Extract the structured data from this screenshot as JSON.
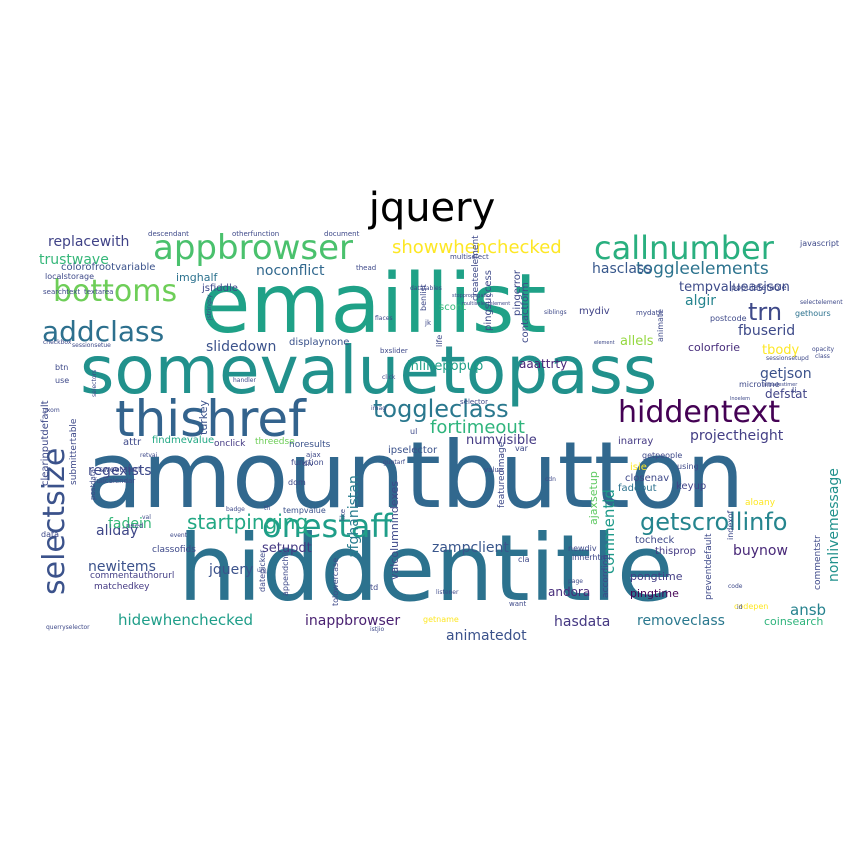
{
  "title": "jquery",
  "words": [
    {
      "text": "amountbutton",
      "color": "#31688e"
    },
    {
      "text": "hiddentitle",
      "color": "#2c728e"
    },
    {
      "text": "emaillist",
      "color": "#1fa187"
    },
    {
      "text": "somevaluetopass",
      "color": "#21918c"
    },
    {
      "text": "thishref",
      "color": "#33638d"
    },
    {
      "text": "appbrowser",
      "color": "#4ac16d"
    },
    {
      "text": "callnumber",
      "color": "#29af7f"
    },
    {
      "text": "bottoms",
      "color": "#6ece58"
    },
    {
      "text": "addclass",
      "color": "#2d708e"
    },
    {
      "text": "selectsize",
      "color": "#3b528b"
    },
    {
      "text": "hiddentext",
      "color": "#440154"
    },
    {
      "text": "onestaff",
      "color": "#1f9e89"
    },
    {
      "text": "toggleclass",
      "color": "#2a788e"
    },
    {
      "text": "getscrollinfo",
      "color": "#25858e"
    },
    {
      "text": "showwhenchecked",
      "color": "#fde725"
    },
    {
      "text": "toggleelements",
      "color": "#2c738e"
    },
    {
      "text": "startpinging",
      "color": "#22a884"
    },
    {
      "text": "trn",
      "color": "#3e4989"
    },
    {
      "text": "fortimeout",
      "color": "#2fb47c"
    },
    {
      "text": "replacewith",
      "color": "#404387"
    },
    {
      "text": "trustwave",
      "color": "#35b779"
    },
    {
      "text": "noconflict",
      "color": "#31688e"
    },
    {
      "text": "hasclass",
      "color": "#38588c"
    },
    {
      "text": "tempvalueasjson",
      "color": "#3e4c8a"
    },
    {
      "text": "fbuserid",
      "color": "#3e4a89"
    },
    {
      "text": "projectheight",
      "color": "#433e85"
    },
    {
      "text": "nonlivemessage",
      "color": "#21918c"
    },
    {
      "text": "slidedown",
      "color": "#3b528b"
    },
    {
      "text": "inlinepopup",
      "color": "#1fa088"
    },
    {
      "text": "aaattrty",
      "color": "#482677"
    },
    {
      "text": "allels",
      "color": "#95d840"
    },
    {
      "text": "colorforie",
      "color": "#472d7b"
    },
    {
      "text": "tbody",
      "color": "#fde725"
    },
    {
      "text": "getjson",
      "color": "#3b528b"
    },
    {
      "text": "defstat",
      "color": "#414487"
    },
    {
      "text": "algir",
      "color": "#25848e"
    },
    {
      "text": "regexists",
      "color": "#3e4989"
    },
    {
      "text": "newitems",
      "color": "#3b528b"
    },
    {
      "text": "allday",
      "color": "#3f4788"
    },
    {
      "text": "fadein",
      "color": "#35b779"
    },
    {
      "text": "jquery",
      "color": "#3b528b"
    },
    {
      "text": "setupdt",
      "color": "#443983"
    },
    {
      "text": "buynow",
      "color": "#482878"
    },
    {
      "text": "commentid",
      "color": "#1f9a8a"
    },
    {
      "text": "zampclient",
      "color": "#39568c"
    },
    {
      "text": "afghanistan",
      "color": "#287c8e"
    },
    {
      "text": "numvisible",
      "color": "#443a83"
    },
    {
      "text": "hidewhenchecked",
      "color": "#1f9e89"
    },
    {
      "text": "inappbrowser",
      "color": "#481f70"
    },
    {
      "text": "animatedot",
      "color": "#3b528b"
    },
    {
      "text": "hasdata",
      "color": "#453882"
    },
    {
      "text": "removeclass",
      "color": "#2a788e"
    },
    {
      "text": "ansb",
      "color": "#26828e"
    },
    {
      "text": "andora",
      "color": "#472c7a"
    },
    {
      "text": "pongtime",
      "color": "#433e85"
    },
    {
      "text": "pingtime",
      "color": "#440154"
    },
    {
      "text": "coinsearch",
      "color": "#2fb47c"
    },
    {
      "text": "codepen",
      "color": "#fde725"
    },
    {
      "text": "imghalf",
      "color": "#2c728e"
    },
    {
      "text": "ipselector",
      "color": "#3b528b"
    },
    {
      "text": "colorofrootvariable",
      "color": "#3b528b"
    },
    {
      "text": "threedse",
      "color": "#6ece58"
    },
    {
      "text": "findmevalue",
      "color": "#22a884"
    },
    {
      "text": "onclick",
      "color": "#443983"
    },
    {
      "text": "attr",
      "color": "#3e4989"
    },
    {
      "text": "turkey",
      "color": "#3b528b"
    },
    {
      "text": "noresults",
      "color": "#3b528b"
    },
    {
      "text": "matchedkey",
      "color": "#443983"
    },
    {
      "text": "commentauthorurl",
      "color": "#433e85"
    },
    {
      "text": "regexists",
      "color": "#3e4989"
    },
    {
      "text": "scont",
      "color": "#35b779"
    },
    {
      "text": "mydiv",
      "color": "#404387"
    },
    {
      "text": "inarray",
      "color": "#443983"
    },
    {
      "text": "isie",
      "color": "#fde725"
    },
    {
      "text": "closenav",
      "color": "#3e4989"
    },
    {
      "text": "fadeout",
      "color": "#2c728e"
    },
    {
      "text": "keyup",
      "color": "#404387"
    },
    {
      "text": "tocheck",
      "color": "#3e4989"
    },
    {
      "text": "thisprop",
      "color": "#443983"
    },
    {
      "text": "setdragtime",
      "color": "#3e4989"
    },
    {
      "text": "ajaxsetup",
      "color": "#5ec962"
    },
    {
      "text": "aloany",
      "color": "#fde725"
    },
    {
      "text": "getname",
      "color": "#fde725"
    },
    {
      "text": "tempvalue",
      "color": "#3b528b"
    },
    {
      "text": "displaynone",
      "color": "#3b528b"
    },
    {
      "text": "populatetable",
      "color": "#3e4989"
    },
    {
      "text": "gethours",
      "color": "#2c728e"
    },
    {
      "text": "microtime",
      "color": "#3e4989"
    },
    {
      "text": "datepicker",
      "color": "#3e4989"
    },
    {
      "text": "appendchild",
      "color": "#3e4989"
    },
    {
      "text": "tolowercase",
      "color": "#3e4989"
    },
    {
      "text": "newdiv",
      "color": "#3e4989"
    },
    {
      "text": "innerhtml",
      "color": "#3e4989"
    },
    {
      "text": "accordion",
      "color": "#3e4989"
    },
    {
      "text": "preventdefault",
      "color": "#3e4989"
    },
    {
      "text": "commentstr",
      "color": "#3e4989"
    },
    {
      "text": "indexof",
      "color": "#3e4989"
    },
    {
      "text": "using",
      "color": "#3e4989"
    },
    {
      "text": "featuredimage",
      "color": "#3e4989"
    },
    {
      "text": "valcolumnindexes",
      "color": "#3e4989"
    },
    {
      "text": "clearinputdefault",
      "color": "#3e4989"
    },
    {
      "text": "submittertable",
      "color": "#3e4989"
    },
    {
      "text": "sweetalert",
      "color": "#3e4989"
    },
    {
      "text": "fullcalendar",
      "color": "#3e4989"
    },
    {
      "text": "postdata",
      "color": "#3e4989"
    },
    {
      "text": "classofids",
      "color": "#3e4989"
    },
    {
      "text": "javascript",
      "color": "#3e4989"
    },
    {
      "text": "postcode",
      "color": "#3e4989"
    },
    {
      "text": "createelement",
      "color": "#3e4989"
    },
    {
      "text": "pingsuccess",
      "color": "#3e4989"
    },
    {
      "text": "pingerror",
      "color": "#3e4989"
    },
    {
      "text": "contactform",
      "color": "#3e4989"
    },
    {
      "text": "multiselect",
      "color": "#3e4989"
    },
    {
      "text": "localstorage",
      "color": "#3e4989"
    },
    {
      "text": "searchtext",
      "color": "#3e4989"
    },
    {
      "text": "textarea",
      "color": "#3e4989"
    },
    {
      "text": "jsfiddle",
      "color": "#3e4989"
    },
    {
      "text": "descendant",
      "color": "#3e4989"
    },
    {
      "text": "otherfunction",
      "color": "#3e4989"
    },
    {
      "text": "document",
      "color": "#3e4989"
    },
    {
      "text": "animate",
      "color": "#3e4989"
    },
    {
      "text": "function",
      "color": "#3e4989"
    },
    {
      "text": "checkbox",
      "color": "#3e4989"
    },
    {
      "text": "selector",
      "color": "#3e4989"
    },
    {
      "text": "handler",
      "color": "#3e4989"
    },
    {
      "text": "mydate",
      "color": "#3e4989"
    },
    {
      "text": "stoppropagation",
      "color": "#3e4989"
    },
    {
      "text": "data",
      "color": "#3e4989"
    },
    {
      "text": "need",
      "color": "#3e4989"
    },
    {
      "text": "btn",
      "color": "#3e4989"
    },
    {
      "text": "use",
      "color": "#3e4989"
    },
    {
      "text": "dom",
      "color": "#3e4989"
    },
    {
      "text": "div",
      "color": "#3e4989"
    },
    {
      "text": "ajax",
      "color": "#3e4989"
    },
    {
      "text": "like",
      "color": "#3e4989"
    },
    {
      "text": "cdn",
      "color": "#3e4989"
    },
    {
      "text": "td",
      "color": "#3e4989"
    },
    {
      "text": "li",
      "color": "#3e4989"
    },
    {
      "text": "var",
      "color": "#3e4989"
    },
    {
      "text": "value",
      "color": "#3e4989"
    },
    {
      "text": "cla",
      "color": "#3e4989"
    },
    {
      "text": "page",
      "color": "#3e4989"
    },
    {
      "text": "want",
      "color": "#3e4989"
    },
    {
      "text": "code",
      "color": "#3e4989"
    },
    {
      "text": "id",
      "color": "#3e4989"
    },
    {
      "text": "querryselector",
      "color": "#3e4989"
    },
    {
      "text": "istjio",
      "color": "#3e4989"
    },
    {
      "text": "listener",
      "color": "#3e4989"
    },
    {
      "text": "datatables",
      "color": "#3e4989"
    },
    {
      "text": "siblings",
      "color": "#3e4989"
    },
    {
      "text": "element",
      "color": "#3e4989"
    },
    {
      "text": "thead",
      "color": "#3e4989"
    },
    {
      "text": "sessionsetue",
      "color": "#3e4989"
    },
    {
      "text": "bxslider",
      "color": "#3e4989"
    },
    {
      "text": "click",
      "color": "#3e4989"
    },
    {
      "text": "imag",
      "color": "#3e4989"
    },
    {
      "text": "event",
      "color": "#3e4989"
    },
    {
      "text": "badge",
      "color": "#3e4989"
    },
    {
      "text": "um",
      "color": "#3e4989"
    },
    {
      "text": "th",
      "color": "#3e4989"
    },
    {
      "text": "val",
      "color": "#3e4989"
    },
    {
      "text": "retvai",
      "color": "#3e4989"
    },
    {
      "text": "selectors",
      "color": "#3e4989"
    },
    {
      "text": "opacity",
      "color": "#3e4989"
    },
    {
      "text": "class",
      "color": "#3e4989"
    },
    {
      "text": "sessionsetupd",
      "color": "#3e4989"
    },
    {
      "text": "selectelement",
      "color": "#3e4989"
    },
    {
      "text": "jstringsy",
      "color": "#3e4989"
    },
    {
      "text": "benlist",
      "color": "#3e4989"
    },
    {
      "text": "ul",
      "color": "#3e4989"
    },
    {
      "text": "life",
      "color": "#3e4989"
    },
    {
      "text": "flaces",
      "color": "#3e4989"
    },
    {
      "text": "jk",
      "color": "#3e4989"
    },
    {
      "text": "gxom",
      "color": "#3e4989"
    },
    {
      "text": "guntarf",
      "color": "#3e4989"
    },
    {
      "text": "multiselectelement",
      "color": "#3e4989"
    },
    {
      "text": "getpeople",
      "color": "#3e4989"
    },
    {
      "text": "lnoelem",
      "color": "#3e4989"
    },
    {
      "text": "alipadestimer",
      "color": "#3e4989"
    }
  ]
}
